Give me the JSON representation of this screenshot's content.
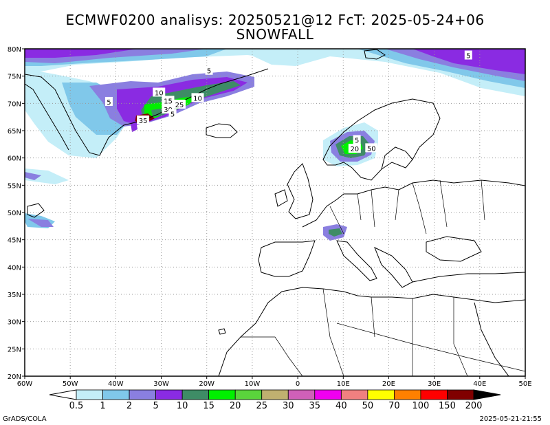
{
  "header": {
    "title_line1": "ECMWF0200 analisys: 20250521@12 FcT: 2025-05-24+06",
    "title_line2": "SNOWFALL"
  },
  "map": {
    "lon_range": [
      -60,
      50
    ],
    "lat_range": [
      20,
      80
    ],
    "lon_ticks": [
      "60W",
      "50W",
      "40W",
      "30W",
      "20W",
      "10W",
      "0",
      "10E",
      "20E",
      "30E",
      "40E",
      "50E"
    ],
    "lat_ticks": [
      "80N",
      "75N",
      "70N",
      "65N",
      "60N",
      "55N",
      "50N",
      "45N",
      "40N",
      "35N",
      "30N",
      "25N",
      "20N"
    ],
    "contour_labels": [
      {
        "text": "5",
        "lon": -19.5,
        "lat": 76.0
      },
      {
        "text": "5",
        "lon": -41.5,
        "lat": 70.3
      },
      {
        "text": "10",
        "lon": -30.5,
        "lat": 72.0
      },
      {
        "text": "10",
        "lon": -22.0,
        "lat": 71.0
      },
      {
        "text": "15",
        "lon": -28.5,
        "lat": 70.5
      },
      {
        "text": "25",
        "lon": -26.0,
        "lat": 69.8
      },
      {
        "text": "30",
        "lon": -28.5,
        "lat": 68.9
      },
      {
        "text": "5",
        "lon": -27.5,
        "lat": 68.1
      },
      {
        "text": "35",
        "lon": -34.0,
        "lat": 66.9
      },
      {
        "text": "5",
        "lon": 37.5,
        "lat": 78.8
      },
      {
        "text": "5",
        "lon": 13.0,
        "lat": 63.3
      },
      {
        "text": "20",
        "lon": 12.5,
        "lat": 61.7
      },
      {
        "text": "50",
        "lon": 16.2,
        "lat": 61.8
      }
    ]
  },
  "legend": {
    "levels": [
      "0.5",
      "1",
      "2",
      "5",
      "10",
      "15",
      "20",
      "25",
      "30",
      "35",
      "40",
      "50",
      "70",
      "100",
      "150",
      "200"
    ],
    "colors": [
      "#c4eef8",
      "#80c8ea",
      "#8a7fe0",
      "#8a2be2",
      "#3e8c66",
      "#00f000",
      "#5ad43c",
      "#c0b070",
      "#d060b8",
      "#f000f0",
      "#f08080",
      "#ffff00",
      "#ff8000",
      "#ff0000",
      "#800000"
    ],
    "low_arrow_color": "#ffffff",
    "high_arrow_color": "#000000"
  },
  "footer": {
    "left": "GrADS/COLA",
    "right": "2025-05-21-21:55"
  }
}
